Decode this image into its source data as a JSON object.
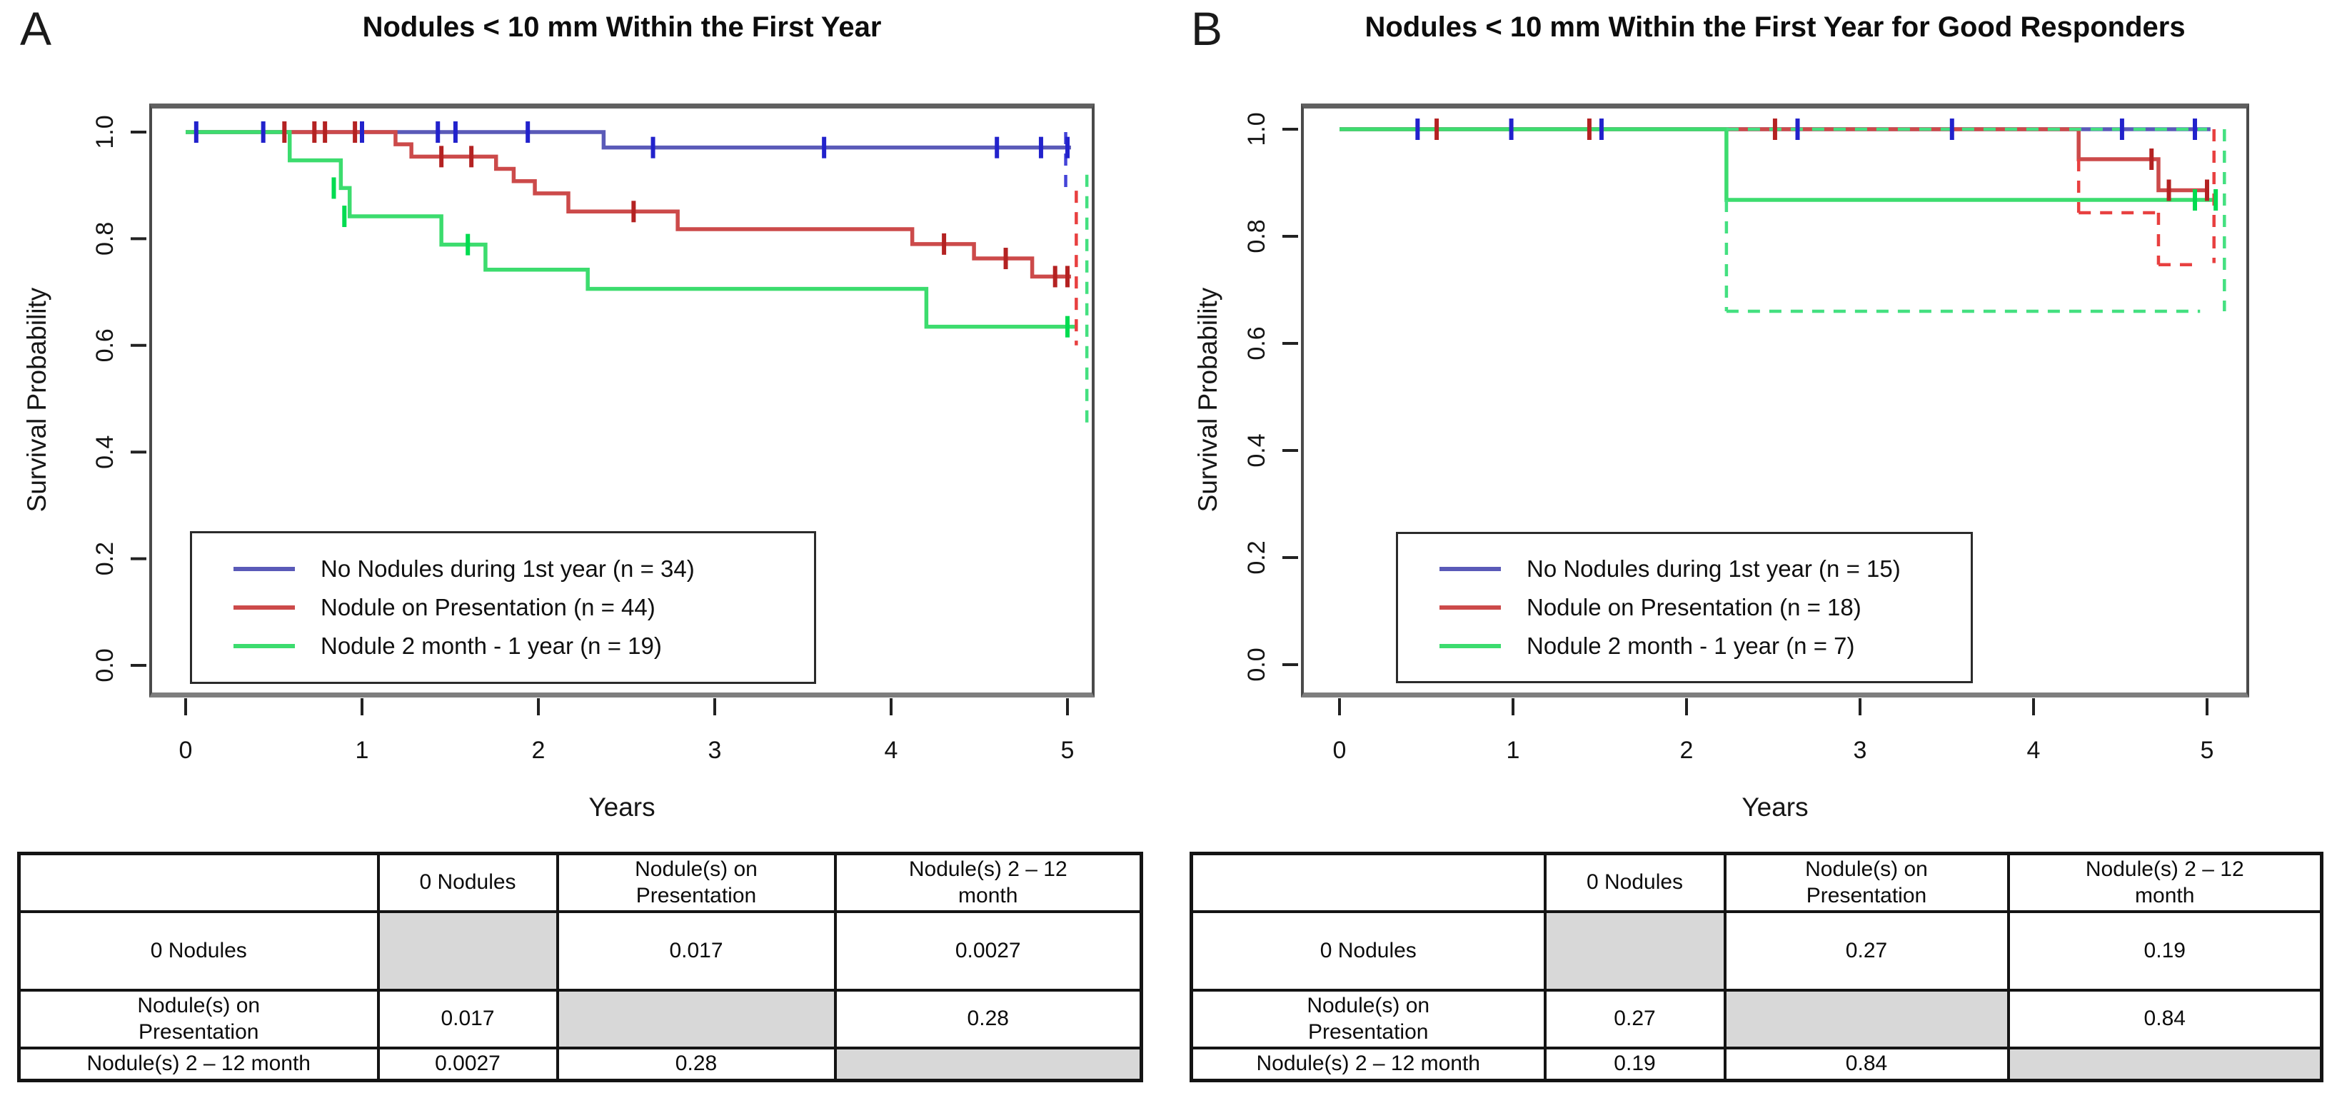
{
  "figure": {
    "background": "#ffffff",
    "table_gray": "#d8d8d8"
  },
  "panel_a": {
    "letter": "A",
    "title": "Nodules < 10 mm Within the First Year",
    "x_label": "Years",
    "y_label": "Survival Probability",
    "x_ticks": [
      "0",
      "1",
      "2",
      "3",
      "4",
      "5"
    ],
    "y_ticks": [
      "1.0",
      "0.8",
      "0.6",
      "0.4",
      "0.2",
      "0.0"
    ],
    "legend": [
      {
        "label": "No Nodules during 1st year (n = 34)",
        "color": "#5A5AB8"
      },
      {
        "label": "Nodule on Presentation (n = 44)",
        "color": "#CC4A4A"
      },
      {
        "label": "Nodule 2 month - 1 year (n = 19)",
        "color": "#3CDC6E"
      }
    ],
    "table": {
      "col_headers": [
        [
          ""
        ],
        [
          "0 Nodules"
        ],
        [
          "Nodule(s) on",
          "Presentation"
        ],
        [
          "Nodule(s) 2 – 12",
          "month"
        ]
      ],
      "rows": [
        {
          "label": [
            "0 Nodules"
          ],
          "values": [
            null,
            "0.017",
            "0.0027"
          ]
        },
        {
          "label": [
            "Nodule(s) on",
            "Presentation"
          ],
          "values": [
            "0.017",
            null,
            "0.28"
          ]
        },
        {
          "label": [
            "Nodule(s) 2 – 12 month"
          ],
          "values": [
            "0.0027",
            "0.28",
            null
          ]
        }
      ]
    }
  },
  "panel_b": {
    "letter": "B",
    "title": "Nodules < 10 mm Within the First Year for Good Responders",
    "x_label": "Years",
    "y_label": "Survival Probability",
    "x_ticks": [
      "0",
      "1",
      "2",
      "3",
      "4",
      "5"
    ],
    "y_ticks": [
      "1.0",
      "0.8",
      "0.6",
      "0.4",
      "0.2",
      "0.0"
    ],
    "legend": [
      {
        "label": "No Nodules during 1st year (n = 15)",
        "color": "#5A5AB8"
      },
      {
        "label": "Nodule on Presentation (n = 18)",
        "color": "#CC4A4A"
      },
      {
        "label": "Nodule 2 month - 1 year (n = 7)",
        "color": "#3CDC6E"
      }
    ],
    "table": {
      "col_headers": [
        [
          ""
        ],
        [
          "0 Nodules"
        ],
        [
          "Nodule(s) on",
          "Presentation"
        ],
        [
          "Nodule(s) 2 – 12",
          "month"
        ]
      ],
      "rows": [
        {
          "label": [
            "0 Nodules"
          ],
          "values": [
            null,
            "0.27",
            "0.19"
          ]
        },
        {
          "label": [
            "Nodule(s) on",
            "Presentation"
          ],
          "values": [
            "0.27",
            null,
            "0.84"
          ]
        },
        {
          "label": [
            "Nodule(s) 2 – 12 month"
          ],
          "values": [
            "0.19",
            "0.84",
            null
          ]
        }
      ]
    }
  },
  "chart_data": [
    {
      "type": "line",
      "step": true,
      "title": "Nodules < 10 mm Within the First Year",
      "xlabel": "Years",
      "ylabel": "Survival Probability",
      "xlim": [
        0,
        5.3
      ],
      "ylim": [
        0,
        1.0
      ],
      "grid": false,
      "legend_position": "bottom-left-inside",
      "series": [
        {
          "name": "No Nodules during 1st year (n = 34)",
          "color": "#5A5AB8",
          "censor_color": "#2222CC",
          "dash_color": "#4444D8",
          "steps": [
            [
              0,
              1.0
            ],
            [
              2.37,
              0.971
            ]
          ],
          "end": 5.02,
          "censors": [
            [
              0.06,
              1.0
            ],
            [
              0.44,
              1.0
            ],
            [
              1.0,
              1.0
            ],
            [
              1.43,
              1.0
            ],
            [
              1.53,
              1.0
            ],
            [
              1.94,
              1.0
            ],
            [
              2.65,
              0.971
            ],
            [
              3.62,
              0.971
            ],
            [
              4.6,
              0.971
            ],
            [
              4.85,
              0.971
            ],
            [
              5.0,
              0.971
            ]
          ],
          "dashes": [
            {
              "type": "v",
              "x": 4.99,
              "y1": 1.0,
              "y2": 0.895
            }
          ]
        },
        {
          "name": "Nodule on Presentation (n = 44)",
          "color": "#CC4A4A",
          "censor_color": "#B42222",
          "dash_color": "#E84040",
          "steps": [
            [
              0,
              1.0
            ],
            [
              1.19,
              0.977
            ],
            [
              1.28,
              0.954
            ],
            [
              1.76,
              0.931
            ],
            [
              1.86,
              0.908
            ],
            [
              1.98,
              0.885
            ],
            [
              2.17,
              0.851
            ],
            [
              2.79,
              0.818
            ],
            [
              4.12,
              0.79
            ],
            [
              4.47,
              0.763
            ],
            [
              4.8,
              0.729
            ]
          ],
          "end": 5.02,
          "censors": [
            [
              0.56,
              1.0
            ],
            [
              0.73,
              1.0
            ],
            [
              0.79,
              1.0
            ],
            [
              0.96,
              1.0
            ],
            [
              1.45,
              0.954
            ],
            [
              1.62,
              0.954
            ],
            [
              2.54,
              0.851
            ],
            [
              4.3,
              0.79
            ],
            [
              4.65,
              0.763
            ],
            [
              4.93,
              0.729
            ],
            [
              5.0,
              0.729
            ]
          ],
          "dashes": [
            {
              "type": "v",
              "x": 5.05,
              "y1": 0.89,
              "y2": 0.6
            }
          ]
        },
        {
          "name": "Nodule 2 month - 1 year (n = 19)",
          "color": "#3CDC6E",
          "censor_color": "#00DC50",
          "dash_color": "#44E080",
          "steps": [
            [
              0,
              1.0
            ],
            [
              0.59,
              0.947
            ],
            [
              0.88,
              0.895
            ],
            [
              0.93,
              0.842
            ],
            [
              1.45,
              0.789
            ],
            [
              1.7,
              0.742
            ],
            [
              2.28,
              0.706
            ],
            [
              4.2,
              0.635
            ]
          ],
          "end": 5.05,
          "censors": [
            [
              0.84,
              0.895
            ],
            [
              0.9,
              0.842
            ],
            [
              1.6,
              0.789
            ],
            [
              5.0,
              0.635
            ]
          ],
          "dashes": [
            {
              "type": "v",
              "x": 5.11,
              "y1": 0.92,
              "y2": 0.44
            }
          ]
        }
      ]
    },
    {
      "type": "line",
      "step": true,
      "title": "Nodules < 10 mm Within the First Year for Good Responders",
      "xlabel": "Years",
      "ylabel": "Survival Probability",
      "xlim": [
        0,
        5.3
      ],
      "ylim": [
        0,
        1.0
      ],
      "grid": false,
      "legend_position": "bottom-left-inside",
      "series": [
        {
          "name": "No Nodules during 1st year (n = 15)",
          "color": "#5A5AB8",
          "censor_color": "#2222CC",
          "dash_color": "#4444D8",
          "steps": [
            [
              0,
              1.0
            ]
          ],
          "end": 5.02,
          "censors": [
            [
              0.45,
              1.0
            ],
            [
              0.99,
              1.0
            ],
            [
              1.51,
              1.0
            ],
            [
              2.64,
              1.0
            ],
            [
              3.53,
              1.0
            ],
            [
              4.51,
              1.0
            ],
            [
              4.93,
              1.0
            ]
          ],
          "dashes": []
        },
        {
          "name": "Nodule on Presentation (n = 18)",
          "color": "#CC4A4A",
          "censor_color": "#B42222",
          "dash_color": "#E84040",
          "steps": [
            [
              0,
              1.0
            ],
            [
              4.26,
              0.944
            ],
            [
              4.72,
              0.886
            ]
          ],
          "end": 5.0,
          "censors": [
            [
              0.56,
              1.0
            ],
            [
              1.44,
              1.0
            ],
            [
              2.51,
              1.0
            ],
            [
              4.68,
              0.944
            ],
            [
              4.78,
              0.886
            ],
            [
              5.0,
              0.886
            ]
          ],
          "dashes": [
            {
              "type": "v",
              "x": 4.26,
              "y1": 0.944,
              "y2": 0.844
            },
            {
              "type": "h",
              "y": 0.844,
              "x1": 4.26,
              "x2": 4.72
            },
            {
              "type": "v",
              "x": 4.72,
              "y1": 0.844,
              "y2": 0.747
            },
            {
              "type": "h",
              "y": 0.747,
              "x1": 4.72,
              "x2": 4.96
            },
            {
              "type": "v",
              "x": 5.04,
              "y1": 1.0,
              "y2": 0.75
            }
          ]
        },
        {
          "name": "Nodule 2 month - 1 year (n = 7)",
          "color": "#3CDC6E",
          "censor_color": "#00DC50",
          "dash_color": "#44E080",
          "steps": [
            [
              0,
              1.0
            ],
            [
              2.23,
              0.868
            ]
          ],
          "end": 5.05,
          "censors": [
            [
              4.93,
              0.868
            ],
            [
              5.05,
              0.868
            ]
          ],
          "dashes": [
            {
              "type": "h",
              "y": 1.0,
              "x1": 2.23,
              "x2": 5.0
            },
            {
              "type": "v",
              "x": 2.23,
              "y1": 0.868,
              "y2": 0.66
            },
            {
              "type": "h",
              "y": 0.66,
              "x1": 2.23,
              "x2": 4.96
            },
            {
              "type": "v",
              "x": 5.1,
              "y1": 1.0,
              "y2": 0.66
            }
          ]
        }
      ]
    }
  ]
}
